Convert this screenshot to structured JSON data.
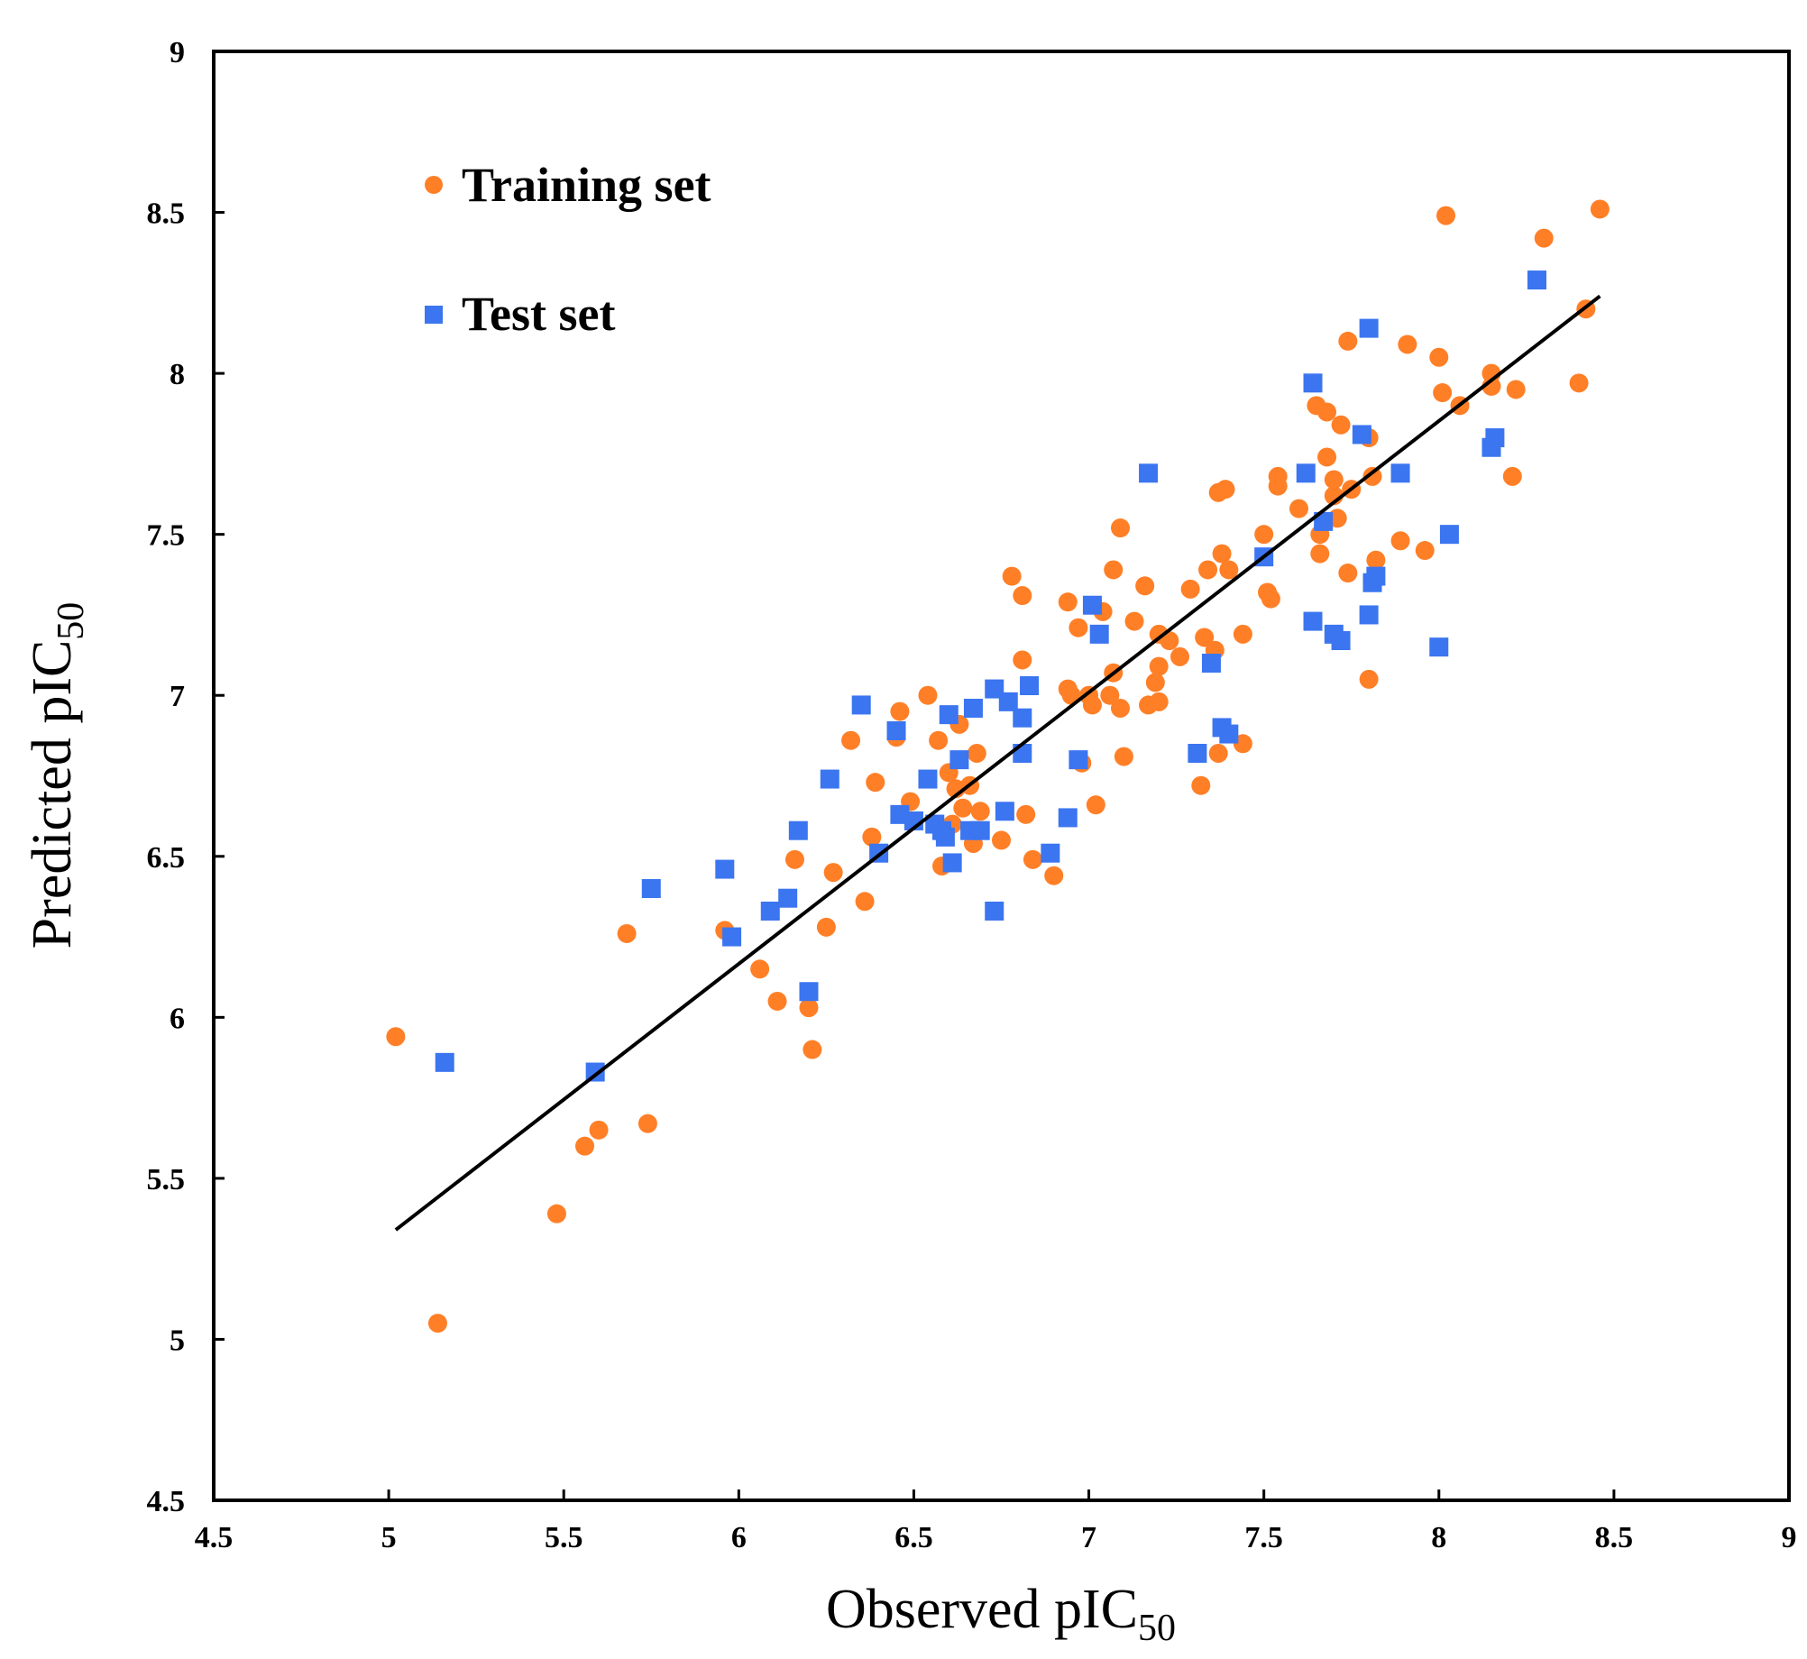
{
  "chart_data": {
    "type": "scatter",
    "title": "",
    "xlabel": "Observed pIC",
    "xlabel_sub": "50",
    "ylabel": "Predicted pIC",
    "ylabel_sub": "50",
    "xlim": [
      4.5,
      9
    ],
    "ylim": [
      4.5,
      9
    ],
    "x_ticks": [
      "4.5",
      "5",
      "5.5",
      "6",
      "6.5",
      "7",
      "7.5",
      "8",
      "8.5",
      "9"
    ],
    "y_ticks": [
      "4.5",
      "5",
      "5.5",
      "6",
      "6.5",
      "7",
      "7.5",
      "8",
      "8.5",
      "9"
    ],
    "grid": false,
    "legend_position": "top-left",
    "series": [
      {
        "name": "Training set",
        "marker": "circle",
        "color": "#FF7F27",
        "points": [
          [
            5.02,
            5.94
          ],
          [
            5.14,
            5.05
          ],
          [
            5.48,
            5.39
          ],
          [
            5.56,
            5.6
          ],
          [
            5.6,
            5.65
          ],
          [
            5.68,
            6.26
          ],
          [
            5.74,
            5.67
          ],
          [
            5.96,
            6.27
          ],
          [
            6.06,
            6.15
          ],
          [
            6.11,
            6.05
          ],
          [
            6.16,
            6.49
          ],
          [
            6.2,
            6.03
          ],
          [
            6.21,
            5.9
          ],
          [
            6.25,
            6.28
          ],
          [
            6.27,
            6.45
          ],
          [
            6.32,
            6.86
          ],
          [
            6.36,
            6.36
          ],
          [
            6.38,
            6.56
          ],
          [
            6.39,
            6.73
          ],
          [
            6.45,
            6.87
          ],
          [
            6.46,
            6.95
          ],
          [
            6.49,
            6.67
          ],
          [
            6.54,
            7.0
          ],
          [
            6.57,
            6.86
          ],
          [
            6.58,
            6.47
          ],
          [
            6.6,
            6.76
          ],
          [
            6.61,
            6.6
          ],
          [
            6.62,
            6.71
          ],
          [
            6.63,
            6.91
          ],
          [
            6.64,
            6.65
          ],
          [
            6.66,
            6.72
          ],
          [
            6.67,
            6.54
          ],
          [
            6.68,
            6.82
          ],
          [
            6.69,
            6.64
          ],
          [
            6.75,
            6.55
          ],
          [
            6.78,
            7.37
          ],
          [
            6.81,
            7.31
          ],
          [
            6.81,
            7.11
          ],
          [
            6.82,
            6.63
          ],
          [
            6.84,
            6.49
          ],
          [
            6.9,
            6.44
          ],
          [
            6.94,
            7.29
          ],
          [
            6.94,
            7.02
          ],
          [
            6.95,
            7.0
          ],
          [
            6.97,
            7.21
          ],
          [
            6.98,
            6.79
          ],
          [
            7.0,
            7.0
          ],
          [
            7.01,
            6.97
          ],
          [
            7.02,
            6.66
          ],
          [
            7.04,
            7.26
          ],
          [
            7.06,
            7.0
          ],
          [
            7.07,
            7.07
          ],
          [
            7.07,
            7.39
          ],
          [
            7.09,
            7.52
          ],
          [
            7.09,
            6.96
          ],
          [
            7.1,
            6.81
          ],
          [
            7.13,
            7.23
          ],
          [
            7.16,
            7.34
          ],
          [
            7.17,
            6.97
          ],
          [
            7.19,
            7.04
          ],
          [
            7.2,
            7.09
          ],
          [
            7.2,
            6.98
          ],
          [
            7.2,
            7.19
          ],
          [
            7.23,
            7.17
          ],
          [
            7.26,
            7.12
          ],
          [
            7.29,
            7.33
          ],
          [
            7.32,
            6.72
          ],
          [
            7.33,
            7.18
          ],
          [
            7.34,
            7.39
          ],
          [
            7.36,
            7.14
          ],
          [
            7.37,
            7.63
          ],
          [
            7.37,
            6.82
          ],
          [
            7.38,
            7.44
          ],
          [
            7.39,
            7.64
          ],
          [
            7.4,
            7.39
          ],
          [
            7.44,
            7.19
          ],
          [
            7.44,
            6.85
          ],
          [
            7.5,
            7.5
          ],
          [
            7.51,
            7.32
          ],
          [
            7.52,
            7.3
          ],
          [
            7.54,
            7.68
          ],
          [
            7.54,
            7.65
          ],
          [
            7.6,
            7.58
          ],
          [
            7.65,
            7.9
          ],
          [
            7.66,
            7.5
          ],
          [
            7.66,
            7.44
          ],
          [
            7.68,
            7.88
          ],
          [
            7.68,
            7.74
          ],
          [
            7.7,
            7.67
          ],
          [
            7.7,
            7.62
          ],
          [
            7.71,
            7.55
          ],
          [
            7.72,
            7.84
          ],
          [
            7.74,
            8.1
          ],
          [
            7.74,
            7.38
          ],
          [
            7.75,
            7.64
          ],
          [
            7.8,
            7.8
          ],
          [
            7.8,
            7.05
          ],
          [
            7.81,
            7.68
          ],
          [
            7.82,
            7.42
          ],
          [
            7.89,
            7.48
          ],
          [
            7.91,
            8.09
          ],
          [
            7.96,
            7.45
          ],
          [
            8.0,
            8.05
          ],
          [
            8.01,
            7.94
          ],
          [
            8.02,
            8.49
          ],
          [
            8.06,
            7.9
          ],
          [
            8.15,
            8.0
          ],
          [
            8.15,
            7.96
          ],
          [
            8.21,
            7.68
          ],
          [
            8.22,
            7.95
          ],
          [
            8.3,
            8.42
          ],
          [
            8.4,
            7.97
          ],
          [
            8.42,
            8.2
          ],
          [
            8.46,
            8.51
          ]
        ]
      },
      {
        "name": "Test set",
        "marker": "square",
        "color": "#3B75F0",
        "points": [
          [
            5.16,
            5.86
          ],
          [
            5.59,
            5.83
          ],
          [
            5.75,
            6.4
          ],
          [
            5.96,
            6.46
          ],
          [
            5.98,
            6.25
          ],
          [
            6.09,
            6.33
          ],
          [
            6.14,
            6.37
          ],
          [
            6.17,
            6.58
          ],
          [
            6.2,
            6.08
          ],
          [
            6.26,
            6.74
          ],
          [
            6.35,
            6.97
          ],
          [
            6.4,
            6.51
          ],
          [
            6.45,
            6.89
          ],
          [
            6.46,
            6.63
          ],
          [
            6.5,
            6.61
          ],
          [
            6.54,
            6.74
          ],
          [
            6.56,
            6.6
          ],
          [
            6.58,
            6.58
          ],
          [
            6.59,
            6.56
          ],
          [
            6.6,
            6.94
          ],
          [
            6.61,
            6.48
          ],
          [
            6.63,
            6.8
          ],
          [
            6.66,
            6.58
          ],
          [
            6.67,
            6.96
          ],
          [
            6.69,
            6.58
          ],
          [
            6.73,
            7.02
          ],
          [
            6.73,
            6.33
          ],
          [
            6.76,
            6.64
          ],
          [
            6.77,
            6.98
          ],
          [
            6.81,
            6.93
          ],
          [
            6.81,
            6.82
          ],
          [
            6.83,
            7.03
          ],
          [
            6.89,
            6.51
          ],
          [
            6.94,
            6.62
          ],
          [
            6.97,
            6.8
          ],
          [
            7.01,
            7.28
          ],
          [
            7.03,
            7.19
          ],
          [
            7.17,
            7.69
          ],
          [
            7.31,
            6.82
          ],
          [
            7.35,
            7.1
          ],
          [
            7.38,
            6.9
          ],
          [
            7.4,
            6.88
          ],
          [
            7.5,
            7.43
          ],
          [
            7.62,
            7.69
          ],
          [
            7.64,
            7.97
          ],
          [
            7.64,
            7.23
          ],
          [
            7.67,
            7.54
          ],
          [
            7.7,
            7.19
          ],
          [
            7.72,
            7.17
          ],
          [
            7.78,
            7.81
          ],
          [
            7.8,
            8.14
          ],
          [
            7.8,
            7.25
          ],
          [
            7.81,
            7.35
          ],
          [
            7.82,
            7.37
          ],
          [
            7.89,
            7.69
          ],
          [
            8.0,
            7.15
          ],
          [
            8.03,
            7.5
          ],
          [
            8.15,
            7.77
          ],
          [
            8.16,
            7.8
          ],
          [
            8.28,
            8.29
          ]
        ]
      }
    ],
    "trendline": {
      "name": "fit line",
      "x": [
        5.02,
        8.46
      ],
      "y": [
        5.34,
        8.24
      ],
      "color": "#000000"
    }
  }
}
